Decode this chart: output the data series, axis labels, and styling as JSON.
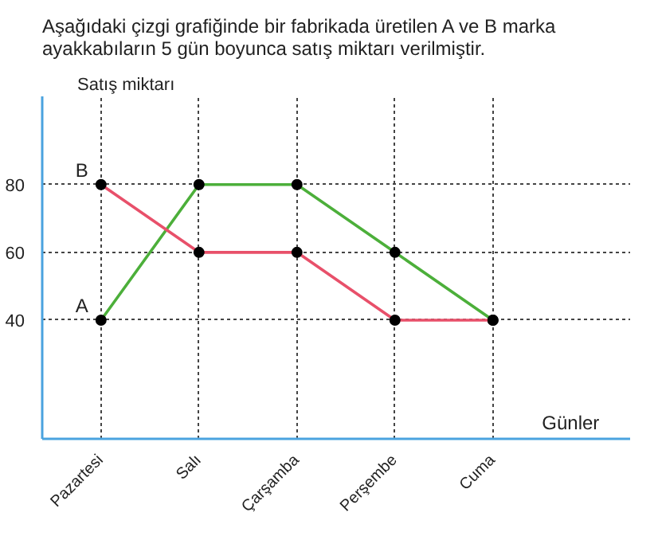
{
  "chart_data": {
    "type": "line",
    "title": "Aşağıdaki çizgi grafiğinde bir fabrikada üretilen A ve B marka ayakkabıların 5 gün boyunca satış miktarı verilmiştir.",
    "xlabel": "Günler",
    "ylabel": "Satış miktarı",
    "categories": [
      "Pazartesi",
      "Salı",
      "Çarşamba",
      "Perşembe",
      "Cuma"
    ],
    "series": [
      {
        "name": "A",
        "color": "#4caf3a",
        "values": [
          40,
          80,
          80,
          60,
          40
        ]
      },
      {
        "name": "B",
        "color": "#e8506a",
        "values": [
          80,
          60,
          60,
          40,
          40
        ]
      }
    ],
    "ylim": [
      5,
      106
    ],
    "yticks": [
      40,
      60,
      80
    ],
    "grid": true,
    "marker": "circle",
    "line_style": "solid"
  }
}
